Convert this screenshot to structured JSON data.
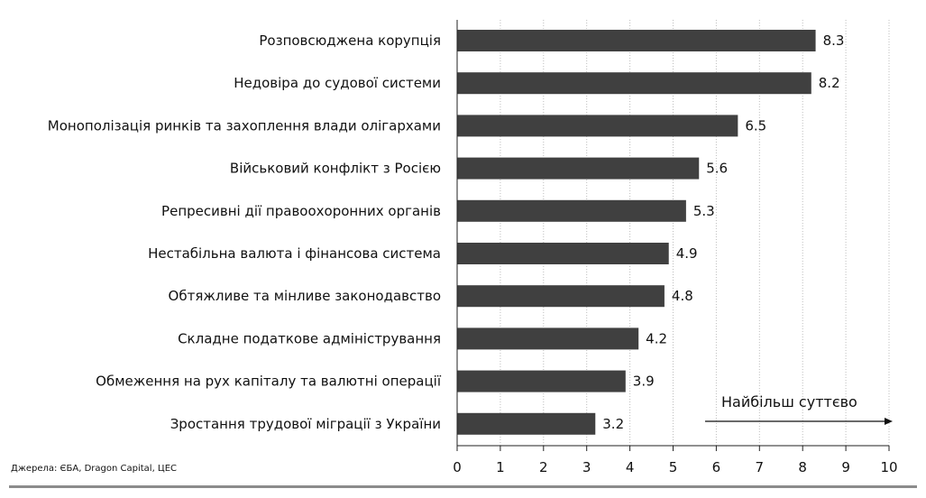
{
  "chart_data": {
    "type": "bar",
    "orientation": "horizontal",
    "categories": [
      "Розповсюджена корупція",
      "Недовіра до судової системи",
      "Монополізація ринків та захоплення влади олігархами",
      "Військовий конфлікт з Росією",
      "Репресивні дії правоохоронних органів",
      "Нестабільна валюта і фінансова система",
      "Обтяжливе та мінливе законодавство",
      "Складне податкове адміністрування",
      "Обмеження на рух капіталу та валютні операції",
      "Зростання трудової міграції з України"
    ],
    "values": [
      8.3,
      8.2,
      6.5,
      5.6,
      5.3,
      4.9,
      4.8,
      4.2,
      3.9,
      3.2
    ],
    "value_labels": [
      "8.3",
      "8.2",
      "6.5",
      "5.6",
      "5.3",
      "4.9",
      "4.8",
      "4.2",
      "3.9",
      "3.2"
    ],
    "xlim": [
      0,
      10
    ],
    "xticks": [
      "0",
      "1",
      "2",
      "3",
      "4",
      "5",
      "6",
      "7",
      "8",
      "9",
      "10"
    ],
    "grid": "vertical dotted",
    "bar_color": "#404040",
    "annotation": "Найбільш суттєво",
    "title": "",
    "xlabel": "",
    "ylabel": ""
  },
  "source": "Джерела: ЄБА, Dragon Capital, ЦЕС"
}
